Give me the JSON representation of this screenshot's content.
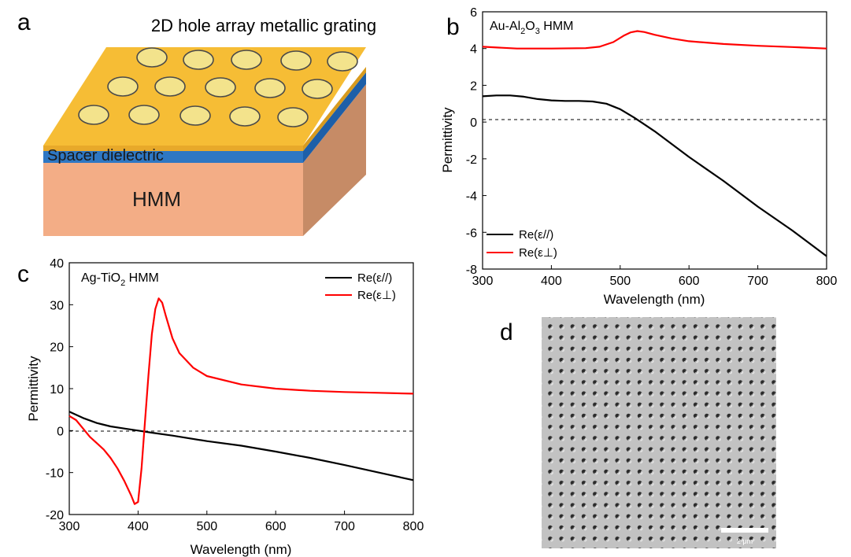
{
  "panels": {
    "a": {
      "letter": "a",
      "title": "2D hole array metallic grating",
      "spacer_label": "Spacer dielectric",
      "hmm_label": "HMM",
      "colors": {
        "grating": "#f6bd35",
        "spacer": "#2e77c3",
        "hmm": "#f3ad86",
        "hmm_side": "#c68b66",
        "hole": "#f3e38c"
      }
    },
    "b": {
      "letter": "b"
    },
    "c": {
      "letter": "c"
    },
    "d": {
      "letter": "d",
      "scale_bar_label": "2 μm"
    }
  },
  "chart_data": [
    {
      "panel": "b",
      "type": "line",
      "title_parts": [
        "Au-Al",
        "2",
        "O",
        "3",
        " HMM"
      ],
      "xlabel": "Wavelength (nm)",
      "ylabel": "Permittivity",
      "xlim": [
        300,
        800
      ],
      "ylim": [
        -8,
        6
      ],
      "xticks": [
        300,
        400,
        500,
        600,
        700,
        800
      ],
      "yticks": [
        -8,
        -6,
        -4,
        -2,
        0,
        2,
        4,
        6
      ],
      "zero_line": true,
      "legend_position": "bottom-left",
      "series": [
        {
          "name": "Re(ε//)",
          "color": "#000000",
          "x": [
            300,
            320,
            340,
            360,
            380,
            400,
            420,
            440,
            460,
            480,
            500,
            520,
            530,
            550,
            600,
            650,
            700,
            750,
            800
          ],
          "y": [
            1.4,
            1.45,
            1.45,
            1.38,
            1.25,
            1.18,
            1.15,
            1.15,
            1.12,
            1.0,
            0.7,
            0.25,
            0.0,
            -0.5,
            -1.9,
            -3.2,
            -4.6,
            -5.9,
            -7.3
          ]
        },
        {
          "name": "Re(ε⊥)",
          "color": "#ff0000",
          "x": [
            300,
            350,
            400,
            450,
            470,
            490,
            505,
            515,
            525,
            535,
            550,
            575,
            600,
            650,
            700,
            750,
            800
          ],
          "y": [
            4.1,
            4.0,
            4.0,
            4.02,
            4.1,
            4.35,
            4.7,
            4.88,
            4.95,
            4.9,
            4.75,
            4.55,
            4.4,
            4.25,
            4.15,
            4.08,
            4.0
          ]
        }
      ]
    },
    {
      "panel": "c",
      "type": "line",
      "title_parts": [
        "Ag-TiO",
        "2",
        "",
        "",
        " HMM"
      ],
      "xlabel": "Wavelength (nm)",
      "ylabel": "Permittivity",
      "xlim": [
        300,
        800
      ],
      "ylim": [
        -20,
        40
      ],
      "xticks": [
        300,
        400,
        500,
        600,
        700,
        800
      ],
      "yticks": [
        -20,
        -10,
        0,
        10,
        20,
        30,
        40
      ],
      "zero_line": true,
      "legend_position": "top-right",
      "series": [
        {
          "name": "Re(ε//)",
          "color": "#000000",
          "x": [
            300,
            320,
            340,
            360,
            380,
            400,
            420,
            450,
            500,
            550,
            600,
            650,
            700,
            750,
            800
          ],
          "y": [
            4.5,
            3.0,
            1.8,
            1.0,
            0.5,
            0.0,
            -0.5,
            -1.2,
            -2.5,
            -3.6,
            -5.0,
            -6.5,
            -8.2,
            -10.0,
            -11.8
          ]
        },
        {
          "name": "Re(ε⊥)",
          "color": "#ff0000",
          "x": [
            300,
            310,
            320,
            330,
            340,
            350,
            360,
            370,
            380,
            390,
            395,
            400,
            405,
            410,
            415,
            420,
            425,
            430,
            435,
            440,
            450,
            460,
            480,
            500,
            550,
            600,
            650,
            700,
            750,
            800
          ],
          "y": [
            3.5,
            2.5,
            0.5,
            -1.5,
            -3.0,
            -4.5,
            -6.5,
            -9.0,
            -12.0,
            -15.5,
            -17.5,
            -17.0,
            -9.0,
            2.0,
            13.0,
            23.0,
            29.0,
            31.5,
            30.5,
            27.5,
            22.0,
            18.5,
            15.0,
            13.0,
            11.0,
            10.0,
            9.5,
            9.2,
            9.0,
            8.8
          ]
        }
      ]
    }
  ]
}
